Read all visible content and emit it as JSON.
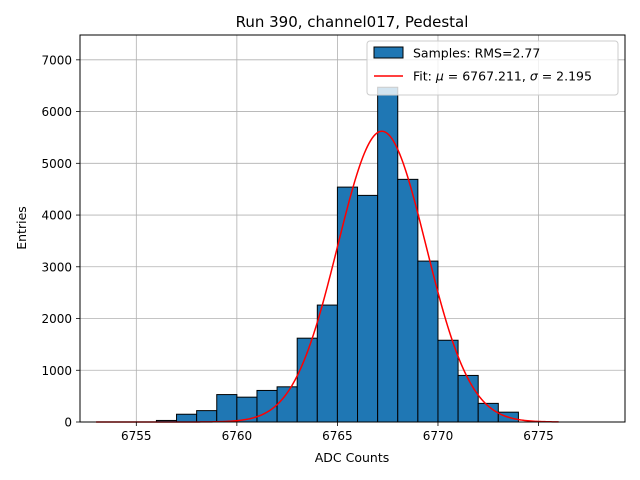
{
  "chart_data": {
    "type": "bar",
    "title": "Run 390, channel017, Pedestal",
    "xlabel": "ADC Counts",
    "ylabel": "Entries",
    "xlim": [
      6752.2,
      6779.3
    ],
    "ylim": [
      0,
      7480
    ],
    "grid": true,
    "legend_position": "top-right",
    "x_ticks": [
      6755,
      6760,
      6765,
      6770,
      6775
    ],
    "y_ticks": [
      0,
      1000,
      2000,
      3000,
      4000,
      5000,
      6000,
      7000
    ],
    "bin_width": 1,
    "bins": [
      {
        "left": 6756,
        "value": 30
      },
      {
        "left": 6757,
        "value": 150
      },
      {
        "left": 6758,
        "value": 220
      },
      {
        "left": 6759,
        "value": 530
      },
      {
        "left": 6760,
        "value": 480
      },
      {
        "left": 6761,
        "value": 610
      },
      {
        "left": 6762,
        "value": 680
      },
      {
        "left": 6763,
        "value": 1620
      },
      {
        "left": 6764,
        "value": 2260
      },
      {
        "left": 6765,
        "value": 4540
      },
      {
        "left": 6766,
        "value": 4380
      },
      {
        "left": 6767,
        "value": 6470
      },
      {
        "left": 6768,
        "value": 4690
      },
      {
        "left": 6769,
        "value": 3110
      },
      {
        "left": 6770,
        "value": 1580
      },
      {
        "left": 6771,
        "value": 900
      },
      {
        "left": 6772,
        "value": 360
      },
      {
        "left": 6773,
        "value": 190
      }
    ],
    "fit": {
      "type": "gaussian",
      "mu": 6767.211,
      "sigma": 2.195,
      "amplitude": 5620,
      "x_range": [
        6753,
        6776
      ]
    },
    "legend": [
      {
        "label": "Samples: RMS=2.77",
        "kind": "patch",
        "color": "#1f77b4"
      },
      {
        "label_prefix": "Fit: ",
        "mu_symbol": "μ",
        "mu_text": " = 6767.211, ",
        "sigma_symbol": "σ",
        "sigma_text": " = 2.195",
        "kind": "line",
        "color": "#ff0000"
      }
    ],
    "colors": {
      "bar_fill": "#1f77b4",
      "bar_edge": "#000000",
      "fit_line": "#ff0000",
      "grid": "#b0b0b0"
    }
  }
}
